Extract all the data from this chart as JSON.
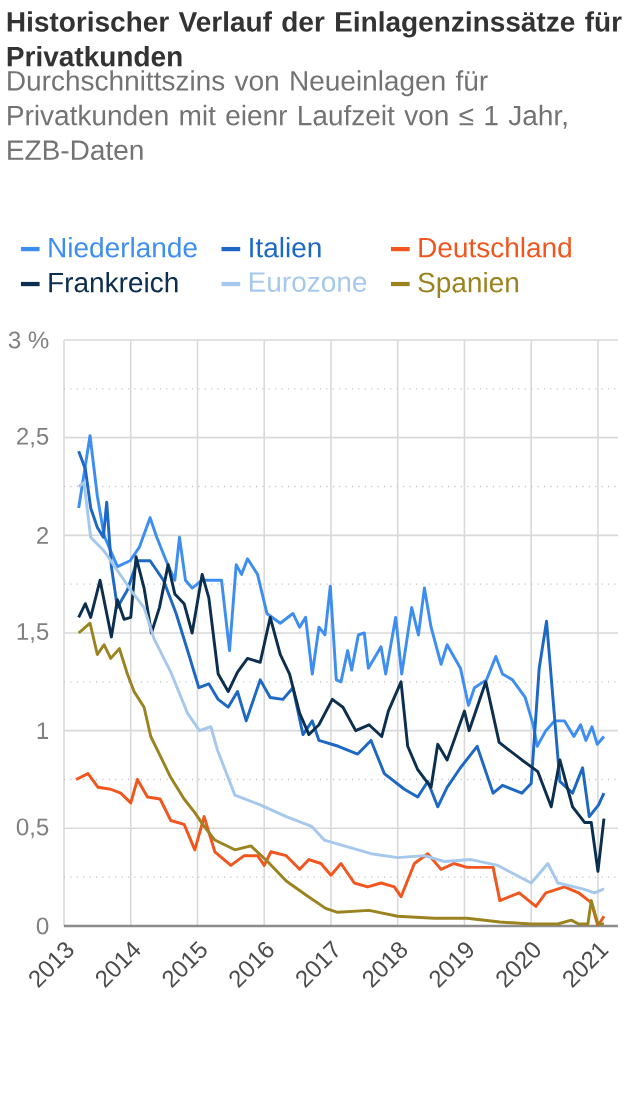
{
  "chart_data": {
    "type": "line",
    "title": "Historischer Verlauf der Einlagenzinssätze für Privatkunden",
    "subtitle": "Durchschnittszins von Neueinlagen für Privatkunden mit eienr Laufzeit von ≤ 1 Jahr, EZB-Daten",
    "xlim": [
      2013,
      2021.3
    ],
    "xticks": [
      2013,
      2014,
      2015,
      2016,
      2017,
      2018,
      2019,
      2020,
      2021
    ],
    "ylim": [
      0,
      3
    ],
    "yticks": [
      0,
      {
        "value": 0.25,
        "label": null
      },
      {
        "value": 0.5,
        "label": "0,5"
      },
      {
        "value": 0.75,
        "label": null
      },
      1,
      {
        "value": 1.25,
        "label": null
      },
      {
        "value": 1.5,
        "label": "1,5"
      },
      {
        "value": 1.75,
        "label": null
      },
      2,
      {
        "value": 2.25,
        "label": null
      },
      {
        "value": 2.5,
        "label": "2,5"
      },
      {
        "value": 2.75,
        "label": null
      },
      {
        "value": 3,
        "label": "3 %"
      }
    ],
    "grid": true,
    "legend": "top",
    "series": [
      {
        "name": "Niederlande",
        "color": "#3d8ef0",
        "x": [
          2013.22,
          2013.39,
          2013.5,
          2013.6,
          2013.8,
          2013.99,
          2014.13,
          2014.29,
          2014.39,
          2014.53,
          2014.66,
          2014.73,
          2014.82,
          2014.92,
          2015.07,
          2015.36,
          2015.48,
          2015.58,
          2015.66,
          2015.75,
          2015.9,
          2016.04,
          2016.24,
          2016.43,
          2016.53,
          2016.62,
          2016.72,
          2016.82,
          2016.91,
          2016.99,
          2017.08,
          2017.15,
          2017.25,
          2017.31,
          2017.41,
          2017.5,
          2017.56,
          2017.75,
          2017.82,
          2017.97,
          2018.06,
          2018.21,
          2018.31,
          2018.4,
          2018.5,
          2018.65,
          2018.74,
          2018.94,
          2019.06,
          2019.15,
          2019.33,
          2019.47,
          2019.57,
          2019.72,
          2019.91,
          2020.03,
          2020.09,
          2020.22,
          2020.35,
          2020.5,
          2020.64,
          2020.74,
          2020.82,
          2020.91,
          2020.99,
          2021.09
        ],
        "values": [
          2.14,
          2.51,
          2.2,
          2.0,
          1.84,
          1.87,
          1.94,
          2.09,
          1.99,
          1.87,
          1.77,
          1.99,
          1.77,
          1.73,
          1.77,
          1.77,
          1.41,
          1.85,
          1.8,
          1.88,
          1.8,
          1.6,
          1.55,
          1.6,
          1.53,
          1.58,
          1.29,
          1.53,
          1.49,
          1.74,
          1.26,
          1.25,
          1.41,
          1.31,
          1.49,
          1.5,
          1.32,
          1.43,
          1.29,
          1.58,
          1.29,
          1.63,
          1.49,
          1.73,
          1.53,
          1.34,
          1.44,
          1.32,
          1.13,
          1.22,
          1.26,
          1.38,
          1.29,
          1.26,
          1.17,
          1.03,
          0.92,
          1.0,
          1.05,
          1.05,
          0.97,
          1.03,
          0.95,
          1.02,
          0.93,
          0.97
        ]
      },
      {
        "name": "Italien",
        "color": "#1c68c4",
        "x": [
          2013.22,
          2013.32,
          2013.4,
          2013.5,
          2013.59,
          2013.64,
          2013.71,
          2013.8,
          2013.95,
          2014.1,
          2014.29,
          2014.49,
          2014.68,
          2014.87,
          2015.02,
          2015.17,
          2015.31,
          2015.46,
          2015.6,
          2015.73,
          2015.94,
          2016.09,
          2016.28,
          2016.43,
          2016.58,
          2016.72,
          2016.82,
          2017.11,
          2017.4,
          2017.6,
          2017.8,
          2018.1,
          2018.3,
          2018.45,
          2018.6,
          2018.74,
          2018.94,
          2019.19,
          2019.43,
          2019.57,
          2019.86,
          2020.0,
          2020.12,
          2020.23,
          2020.43,
          2020.62,
          2020.77,
          2020.87,
          2021.01,
          2021.09
        ],
        "values": [
          2.43,
          2.34,
          2.14,
          2.04,
          1.99,
          2.17,
          1.84,
          1.63,
          1.72,
          1.87,
          1.87,
          1.77,
          1.6,
          1.39,
          1.22,
          1.24,
          1.16,
          1.12,
          1.2,
          1.05,
          1.26,
          1.17,
          1.16,
          1.22,
          0.98,
          1.05,
          0.95,
          0.92,
          0.88,
          0.95,
          0.78,
          0.7,
          0.66,
          0.74,
          0.61,
          0.71,
          0.81,
          0.92,
          0.68,
          0.72,
          0.68,
          0.73,
          1.32,
          1.56,
          0.74,
          0.68,
          0.81,
          0.56,
          0.62,
          0.68
        ]
      },
      {
        "name": "Deutschland",
        "color": "#f0561e",
        "x": [
          2013.18,
          2013.36,
          2013.51,
          2013.7,
          2013.85,
          2014.0,
          2014.1,
          2014.25,
          2014.44,
          2014.6,
          2014.8,
          2014.96,
          2015.1,
          2015.26,
          2015.5,
          2015.7,
          2015.9,
          2016.0,
          2016.1,
          2016.33,
          2016.53,
          2016.67,
          2016.85,
          2017.0,
          2017.15,
          2017.35,
          2017.55,
          2017.75,
          2017.95,
          2018.05,
          2018.25,
          2018.45,
          2018.65,
          2018.84,
          2019.04,
          2019.43,
          2019.53,
          2019.82,
          2020.07,
          2020.22,
          2020.5,
          2020.71,
          2020.9,
          2021.0,
          2021.09
        ],
        "values": [
          0.75,
          0.78,
          0.71,
          0.7,
          0.68,
          0.63,
          0.75,
          0.66,
          0.65,
          0.54,
          0.52,
          0.39,
          0.56,
          0.38,
          0.31,
          0.36,
          0.36,
          0.31,
          0.38,
          0.36,
          0.29,
          0.34,
          0.32,
          0.26,
          0.32,
          0.22,
          0.2,
          0.22,
          0.2,
          0.15,
          0.32,
          0.37,
          0.29,
          0.32,
          0.3,
          0.3,
          0.13,
          0.17,
          0.1,
          0.17,
          0.2,
          0.17,
          0.12,
          0.0,
          0.05
        ]
      },
      {
        "name": "Frankreich",
        "color": "#0d2f4f",
        "x": [
          2013.22,
          2013.32,
          2013.4,
          2013.54,
          2013.71,
          2013.8,
          2013.9,
          2014.0,
          2014.08,
          2014.2,
          2014.31,
          2014.43,
          2014.56,
          2014.66,
          2014.8,
          2014.92,
          2015.07,
          2015.17,
          2015.31,
          2015.46,
          2015.6,
          2015.75,
          2015.94,
          2016.09,
          2016.24,
          2016.38,
          2016.53,
          2016.67,
          2016.82,
          2017.02,
          2017.18,
          2017.37,
          2017.57,
          2017.76,
          2017.86,
          2018.05,
          2018.15,
          2018.3,
          2018.5,
          2018.6,
          2018.74,
          2019.0,
          2019.07,
          2019.32,
          2019.52,
          2019.86,
          2020.1,
          2020.3,
          2020.43,
          2020.62,
          2020.8,
          2020.9,
          2021.0,
          2021.09
        ],
        "values": [
          1.58,
          1.65,
          1.58,
          1.77,
          1.48,
          1.67,
          1.57,
          1.58,
          1.89,
          1.73,
          1.5,
          1.63,
          1.85,
          1.7,
          1.65,
          1.5,
          1.8,
          1.68,
          1.29,
          1.2,
          1.3,
          1.37,
          1.35,
          1.58,
          1.39,
          1.29,
          1.09,
          0.98,
          1.03,
          1.16,
          1.12,
          1.0,
          1.03,
          0.97,
          1.1,
          1.25,
          0.92,
          0.8,
          0.71,
          0.93,
          0.85,
          1.1,
          1.0,
          1.25,
          0.94,
          0.85,
          0.79,
          0.61,
          0.85,
          0.61,
          0.53,
          0.53,
          0.28,
          0.55
        ]
      },
      {
        "name": "Eurozone",
        "color": "#a6c8ec",
        "x": [
          2013.22,
          2013.3,
          2013.4,
          2013.6,
          2013.8,
          2014.0,
          2014.2,
          2014.35,
          2014.6,
          2014.85,
          2015.03,
          2015.2,
          2015.3,
          2015.56,
          2015.94,
          2016.33,
          2016.71,
          2016.9,
          2017.2,
          2017.6,
          2018.0,
          2018.4,
          2018.7,
          2019.1,
          2019.5,
          2020.0,
          2020.25,
          2020.4,
          2020.77,
          2020.95,
          2021.09
        ],
        "values": [
          2.25,
          2.27,
          1.99,
          1.92,
          1.82,
          1.72,
          1.63,
          1.47,
          1.3,
          1.09,
          1.0,
          1.02,
          0.9,
          0.67,
          0.62,
          0.56,
          0.51,
          0.44,
          0.41,
          0.37,
          0.35,
          0.36,
          0.33,
          0.34,
          0.31,
          0.22,
          0.32,
          0.22,
          0.19,
          0.17,
          0.19
        ]
      },
      {
        "name": "Spanien",
        "color": "#9b8320",
        "x": [
          2013.22,
          2013.39,
          2013.5,
          2013.6,
          2013.7,
          2013.83,
          2013.95,
          2014.05,
          2014.2,
          2014.3,
          2014.4,
          2014.6,
          2014.8,
          2014.96,
          2015.1,
          2015.26,
          2015.56,
          2015.8,
          2016.05,
          2016.33,
          2016.62,
          2016.92,
          2017.1,
          2017.57,
          2018.0,
          2018.55,
          2019.04,
          2019.53,
          2020.0,
          2020.4,
          2020.6,
          2020.71,
          2020.85,
          2020.9,
          2021.0,
          2021.09
        ],
        "values": [
          1.5,
          1.55,
          1.39,
          1.44,
          1.37,
          1.42,
          1.29,
          1.2,
          1.12,
          0.97,
          0.9,
          0.76,
          0.65,
          0.58,
          0.51,
          0.44,
          0.39,
          0.41,
          0.33,
          0.23,
          0.16,
          0.09,
          0.07,
          0.08,
          0.05,
          0.04,
          0.04,
          0.02,
          0.01,
          0.01,
          0.03,
          0.01,
          0.01,
          0.13,
          0.01,
          0.01
        ]
      }
    ]
  }
}
